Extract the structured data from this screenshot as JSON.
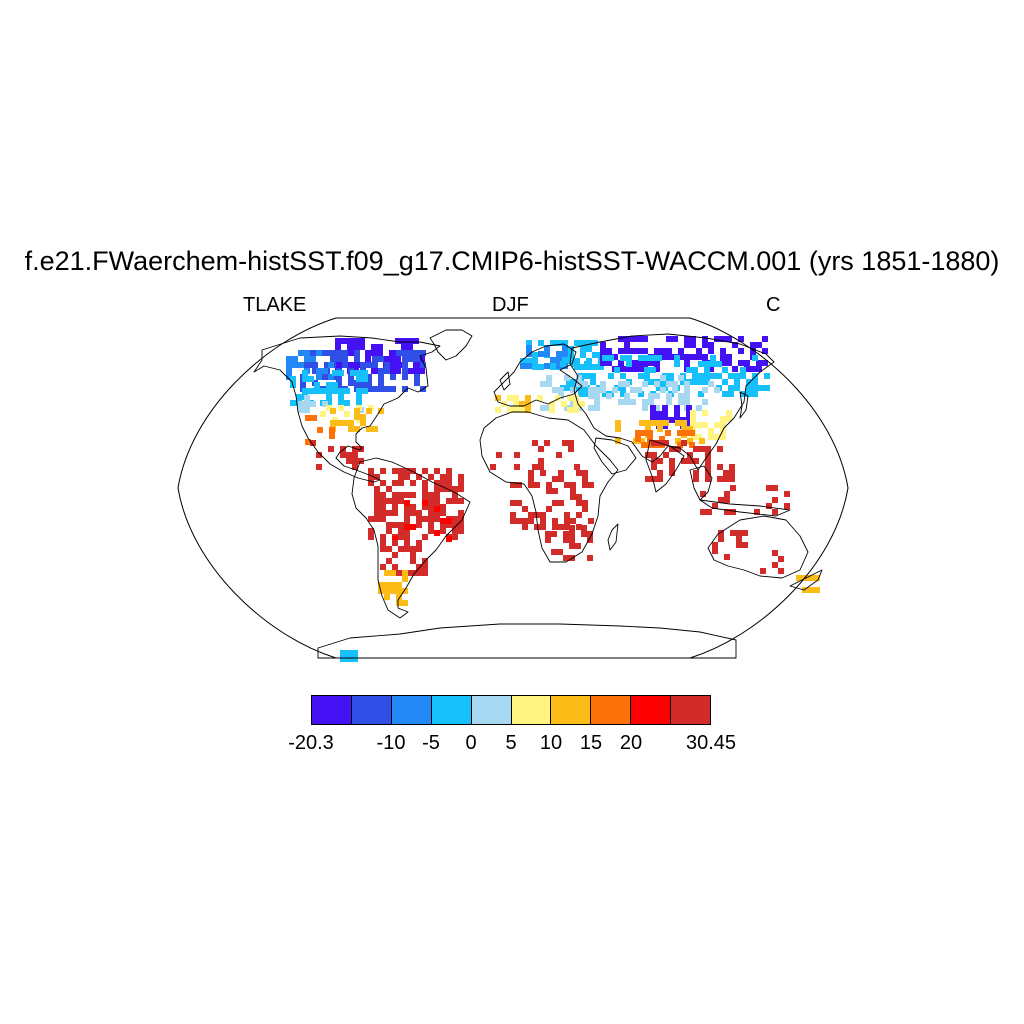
{
  "title": "f.e21.FWaerchem-histSST.f09_g17.CMIP6-histSST-WACCM.001 (yrs 1851-1880)",
  "left_label": "TLAKE",
  "center_label": "DJF",
  "right_label": "C",
  "colors": {
    "levels": [
      "#4411f5",
      "#2f4fe6",
      "#2288f5",
      "#16c0fb",
      "#a6d8f2",
      "#fff381",
      "#fcbc18",
      "#fc7108",
      "#ff0000",
      "#d12b2a"
    ],
    "coastline": "#000000",
    "background": "#ffffff"
  },
  "colorbar": {
    "tick_labels": [
      "-20.3",
      "-10",
      "-5",
      "0",
      "5",
      "10",
      "15",
      "20",
      "30.45"
    ],
    "tick_positions": [
      0,
      2,
      3,
      4,
      5,
      6,
      7,
      8,
      10
    ]
  },
  "map": {
    "projection": "Robinson",
    "field": "lake temperature (TLAKE)",
    "season": "DJF",
    "units": "C"
  }
}
